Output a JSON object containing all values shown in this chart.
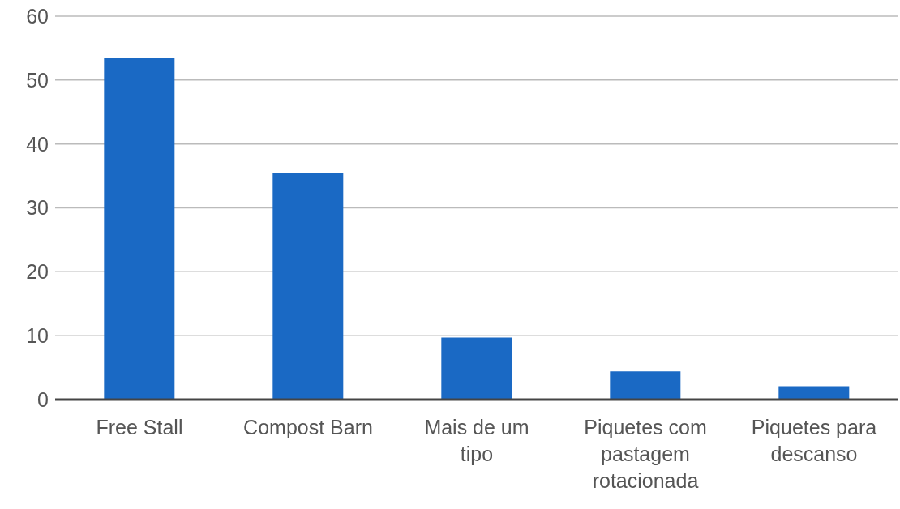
{
  "chart_data": {
    "type": "bar",
    "categories": [
      "Free Stall",
      "Compost Barn",
      "Mais de um tipo",
      "Piquetes com pastagem rotacionada",
      "Piquetes para descanso"
    ],
    "values": [
      53.4,
      35.4,
      9.7,
      4.4,
      2.1
    ],
    "color": "#1a69c4",
    "ylim": [
      0,
      60
    ],
    "yticks": [
      0,
      10,
      20,
      30,
      40,
      50,
      60
    ],
    "grid": "y",
    "legend": false
  }
}
